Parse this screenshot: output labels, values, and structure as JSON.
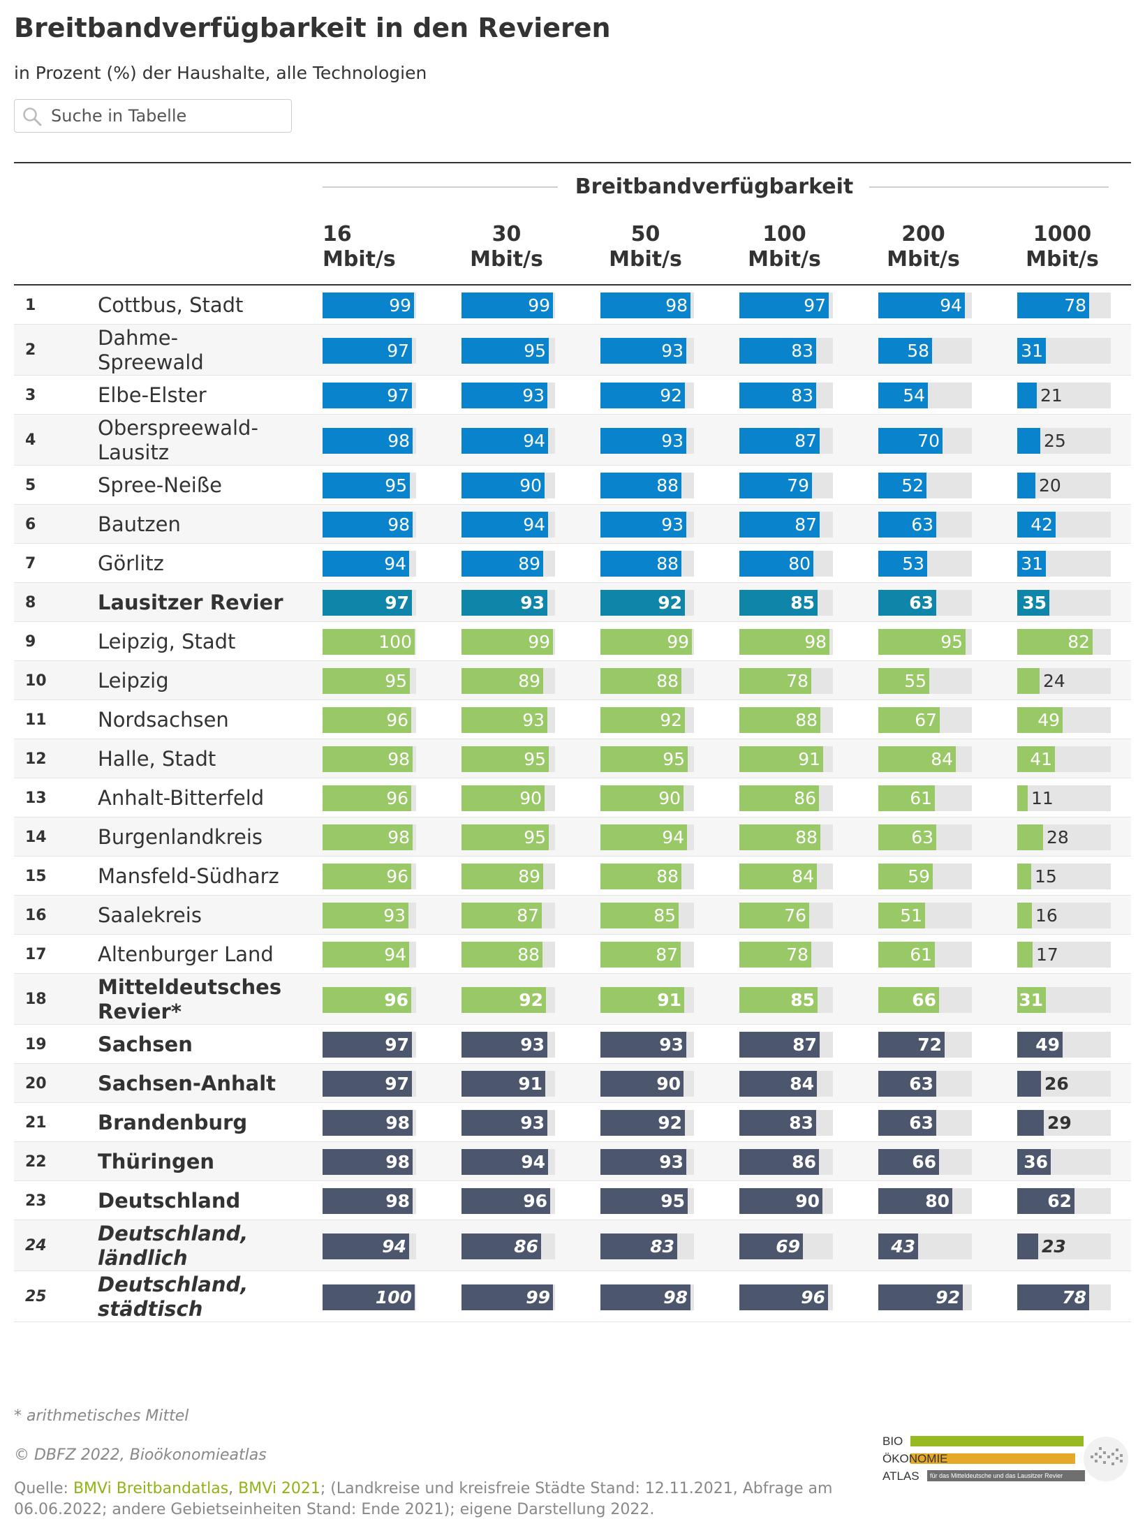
{
  "title": "Breitbandverfügbarkeit in den Revieren",
  "subtitle": "in Prozent (%) der Haushalte, alle Technologien",
  "search": {
    "placeholder": "Suche in Tabelle"
  },
  "colors": {
    "lausitz": "#0984cc",
    "lausitz_summary": "#0f85aa",
    "mittel": "#99c966",
    "reference": "#4c566c",
    "track": "#e5e5e5"
  },
  "chart_data": {
    "type": "table",
    "title": "Breitbandverfügbarkeit in den Revieren",
    "subtitle": "in Prozent (%) der Haushalte, alle Technologien",
    "group_header": "Breitbandverfügbarkeit",
    "columns": [
      [
        "16",
        "Mbit/s"
      ],
      [
        "30",
        "Mbit/s"
      ],
      [
        "50",
        "Mbit/s"
      ],
      [
        "100",
        "Mbit/s"
      ],
      [
        "200",
        "Mbit/s"
      ],
      [
        "1000",
        "Mbit/s"
      ]
    ],
    "value_range": [
      0,
      100
    ],
    "rows": [
      {
        "rank": "1",
        "name": "Cottbus, Stadt",
        "group": "lausitz",
        "values": [
          99,
          99,
          98,
          97,
          94,
          78
        ]
      },
      {
        "rank": "2",
        "name": "Dahme-Spreewald",
        "lines": [
          "Dahme-",
          "Spreewald"
        ],
        "group": "lausitz",
        "values": [
          97,
          95,
          93,
          83,
          58,
          31
        ]
      },
      {
        "rank": "3",
        "name": "Elbe-Elster",
        "group": "lausitz",
        "values": [
          97,
          93,
          92,
          83,
          54,
          21
        ]
      },
      {
        "rank": "4",
        "name": "Oberspreewald-Lausitz",
        "lines": [
          "Oberspreewald-",
          "Lausitz"
        ],
        "group": "lausitz",
        "values": [
          98,
          94,
          93,
          87,
          70,
          25
        ]
      },
      {
        "rank": "5",
        "name": "Spree-Neiße",
        "group": "lausitz",
        "values": [
          95,
          90,
          88,
          79,
          52,
          20
        ]
      },
      {
        "rank": "6",
        "name": "Bautzen",
        "group": "lausitz",
        "values": [
          98,
          94,
          93,
          87,
          63,
          42
        ]
      },
      {
        "rank": "7",
        "name": "Görlitz",
        "group": "lausitz",
        "values": [
          94,
          89,
          88,
          80,
          53,
          31
        ]
      },
      {
        "rank": "8",
        "name": "Lausitzer Revier",
        "group": "lausitz_summary",
        "bold": true,
        "values": [
          97,
          93,
          92,
          85,
          63,
          35
        ]
      },
      {
        "rank": "9",
        "name": "Leipzig, Stadt",
        "group": "mittel",
        "values": [
          100,
          99,
          99,
          98,
          95,
          82
        ]
      },
      {
        "rank": "10",
        "name": "Leipzig",
        "group": "mittel",
        "values": [
          95,
          89,
          88,
          78,
          55,
          24
        ]
      },
      {
        "rank": "11",
        "name": "Nordsachsen",
        "group": "mittel",
        "values": [
          96,
          93,
          92,
          88,
          67,
          49
        ]
      },
      {
        "rank": "12",
        "name": "Halle, Stadt",
        "group": "mittel",
        "values": [
          98,
          95,
          95,
          91,
          84,
          41
        ]
      },
      {
        "rank": "13",
        "name": "Anhalt-Bitterfeld",
        "group": "mittel",
        "values": [
          96,
          90,
          90,
          86,
          61,
          11
        ]
      },
      {
        "rank": "14",
        "name": "Burgenlandkreis",
        "group": "mittel",
        "values": [
          98,
          95,
          94,
          88,
          63,
          28
        ]
      },
      {
        "rank": "15",
        "name": "Mansfeld-Südharz",
        "group": "mittel",
        "values": [
          96,
          89,
          88,
          84,
          59,
          15
        ]
      },
      {
        "rank": "16",
        "name": "Saalekreis",
        "group": "mittel",
        "values": [
          93,
          87,
          85,
          76,
          51,
          16
        ]
      },
      {
        "rank": "17",
        "name": "Altenburger Land",
        "group": "mittel",
        "values": [
          94,
          88,
          87,
          78,
          61,
          17
        ]
      },
      {
        "rank": "18",
        "name": "Mitteldeutsches Revier*",
        "lines": [
          "Mitteldeutsches",
          "Revier*"
        ],
        "group": "mittel",
        "bold": true,
        "values": [
          96,
          92,
          91,
          85,
          66,
          31
        ]
      },
      {
        "rank": "19",
        "name": "Sachsen",
        "group": "reference",
        "bold": true,
        "values": [
          97,
          93,
          93,
          87,
          72,
          49
        ]
      },
      {
        "rank": "20",
        "name": "Sachsen-Anhalt",
        "group": "reference",
        "bold": true,
        "values": [
          97,
          91,
          90,
          84,
          63,
          26
        ]
      },
      {
        "rank": "21",
        "name": "Brandenburg",
        "group": "reference",
        "bold": true,
        "values": [
          98,
          93,
          92,
          83,
          63,
          29
        ]
      },
      {
        "rank": "22",
        "name": "Thüringen",
        "group": "reference",
        "bold": true,
        "values": [
          98,
          94,
          93,
          86,
          66,
          36
        ]
      },
      {
        "rank": "23",
        "name": "Deutschland",
        "group": "reference",
        "bold": true,
        "values": [
          98,
          96,
          95,
          90,
          80,
          62
        ]
      },
      {
        "rank": "24",
        "name": "Deutschland, ländlich",
        "lines": [
          "Deutschland,",
          "ländlich"
        ],
        "group": "reference",
        "bold": true,
        "italic": true,
        "values": [
          94,
          86,
          83,
          69,
          43,
          23
        ]
      },
      {
        "rank": "25",
        "name": "Deutschland, städtisch",
        "lines": [
          "Deutschland,",
          "städtisch"
        ],
        "group": "reference",
        "bold": true,
        "italic": true,
        "values": [
          100,
          99,
          98,
          96,
          92,
          78
        ]
      }
    ]
  },
  "footnote": "* arithmetisches Mittel",
  "copyright": "© DBFZ 2022, Bioökonomieatlas",
  "source": {
    "prefix": "Quelle: ",
    "link1": "BMVi Breitbandatlas",
    "sep": ", ",
    "link2": "BMVi 2021",
    "rest": "; (Landkreise und kreisfreie Städte Stand: 12.11.2021, Abfrage am 06.06.2022; andere Gebietseinheiten Stand: Ende 2021); eigene Darstellung 2022."
  },
  "logo": {
    "line1": "BIO",
    "line2": "ÖKONOMIE",
    "line3": "ATLAS",
    "tagline": "für das Mitteldeutsche und das Lausitzer Revier"
  }
}
